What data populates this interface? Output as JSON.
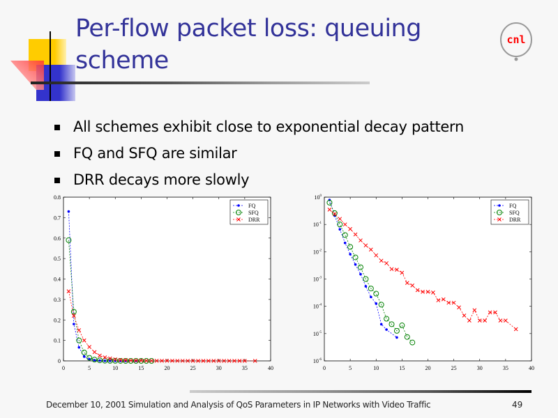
{
  "slide": {
    "title_line1": "Per-flow packet loss: queuing",
    "title_line2": "scheme",
    "bullets": [
      "All schemes exhibit close to exponential decay pattern",
      "FQ and SFQ are similar",
      "DRR decays more slowly"
    ],
    "logo_text": "cnl",
    "footer": "December 10, 2001 Simulation and Analysis of QoS Parameters in IP Networks with Video Traffic",
    "page_number": "49"
  },
  "chart_data": [
    {
      "type": "line",
      "yscale": "linear",
      "xlim": [
        0,
        40
      ],
      "ylim": [
        0,
        0.8
      ],
      "xticks": [
        "0",
        "5",
        "10",
        "15",
        "20",
        "25",
        "30",
        "35",
        "40"
      ],
      "yticks": [
        "0",
        "0.1",
        "0.2",
        "0.3",
        "0.4",
        "0.5",
        "0.6",
        "0.7",
        "0.8"
      ],
      "grid": false,
      "legend": "top-right",
      "series": [
        {
          "name": "FQ",
          "color": "#0000ff",
          "marker": "dot",
          "x": [
            1,
            2,
            3,
            4,
            5,
            6,
            7,
            8,
            9,
            10,
            11,
            12,
            14
          ],
          "y": [
            0.73,
            0.18,
            0.066,
            0.021,
            0.0081,
            0.0034,
            0.0015,
            0.00054,
            0.00022,
            0.000126,
            2.2e-05,
            1.4e-05,
            7.2e-06
          ]
        },
        {
          "name": "SFQ",
          "color": "#008000",
          "marker": "circle",
          "x": [
            1,
            2,
            3,
            4,
            5,
            6,
            7,
            8,
            9,
            10,
            11,
            12,
            13,
            14,
            15,
            16,
            17
          ],
          "y": [
            0.59,
            0.24,
            0.1,
            0.041,
            0.015,
            0.0062,
            0.0027,
            0.001,
            0.00045,
            0.00029,
            0.000115,
            3.5e-05,
            2.2e-05,
            1.26e-05,
            2e-05,
            7.5e-06,
            4.7e-06
          ]
        },
        {
          "name": "DRR",
          "color": "#ff0000",
          "marker": "x",
          "x": [
            1,
            2,
            3,
            4,
            5,
            6,
            7,
            8,
            9,
            10,
            11,
            12,
            13,
            14,
            15,
            16,
            17,
            18,
            19,
            20,
            21,
            22,
            23,
            24,
            25,
            26,
            27,
            28,
            29,
            30,
            31,
            32,
            33,
            34,
            35,
            37
          ],
          "y": [
            0.34,
            0.22,
            0.15,
            0.1,
            0.068,
            0.043,
            0.026,
            0.017,
            0.012,
            0.0074,
            0.0047,
            0.0038,
            0.0023,
            0.0022,
            0.0017,
            0.00072,
            0.00058,
            0.00039,
            0.00034,
            0.00034,
            0.00032,
            0.000166,
            0.00018,
            0.000135,
            0.000135,
            9.1e-05,
            4.6e-05,
            3e-05,
            7.2e-05,
            3e-05,
            3e-05,
            6e-05,
            6e-05,
            3e-05,
            3e-05,
            1.45e-05
          ]
        }
      ]
    },
    {
      "type": "line",
      "yscale": "log",
      "xlim": [
        0,
        40
      ],
      "ylim": [
        1e-06,
        1
      ],
      "xticks": [
        "0",
        "5",
        "10",
        "15",
        "20",
        "25",
        "30",
        "35",
        "40"
      ],
      "yticks": [
        "10^0",
        "10^-1",
        "10^-2",
        "10^-3",
        "10^-4",
        "10^-5",
        "10^-6"
      ],
      "grid": false,
      "legend": "top-right",
      "series": [
        {
          "name": "FQ",
          "color": "#0000ff",
          "marker": "dot",
          "x": [
            1,
            2,
            3,
            4,
            5,
            6,
            7,
            8,
            9,
            10,
            11,
            12,
            14
          ],
          "y": [
            0.79,
            0.21,
            0.066,
            0.021,
            0.0081,
            0.0034,
            0.0015,
            0.00054,
            0.00022,
            0.000126,
            2.2e-05,
            1.4e-05,
            7.2e-06
          ]
        },
        {
          "name": "SFQ",
          "color": "#008000",
          "marker": "circle",
          "x": [
            1,
            2,
            3,
            4,
            5,
            6,
            7,
            8,
            9,
            10,
            11,
            12,
            13,
            14,
            15,
            16,
            17
          ],
          "y": [
            0.63,
            0.26,
            0.1,
            0.041,
            0.015,
            0.0062,
            0.0027,
            0.001,
            0.00045,
            0.00029,
            0.000115,
            3.5e-05,
            2.2e-05,
            1.26e-05,
            2e-05,
            7.5e-06,
            4.7e-06
          ]
        },
        {
          "name": "DRR",
          "color": "#ff0000",
          "marker": "x",
          "x": [
            1,
            2,
            3,
            4,
            5,
            6,
            7,
            8,
            9,
            10,
            11,
            12,
            13,
            14,
            15,
            16,
            17,
            18,
            19,
            20,
            21,
            22,
            23,
            24,
            25,
            26,
            27,
            28,
            29,
            30,
            31,
            32,
            33,
            34,
            35,
            37
          ],
          "y": [
            0.35,
            0.24,
            0.16,
            0.1,
            0.068,
            0.043,
            0.026,
            0.017,
            0.012,
            0.0074,
            0.0047,
            0.0038,
            0.0023,
            0.0022,
            0.0017,
            0.00072,
            0.00058,
            0.00039,
            0.00034,
            0.00034,
            0.00032,
            0.000166,
            0.00018,
            0.000135,
            0.000135,
            9.1e-05,
            4.6e-05,
            3e-05,
            7.2e-05,
            3e-05,
            3e-05,
            6e-05,
            6e-05,
            3e-05,
            3e-05,
            1.45e-05
          ]
        }
      ]
    }
  ]
}
